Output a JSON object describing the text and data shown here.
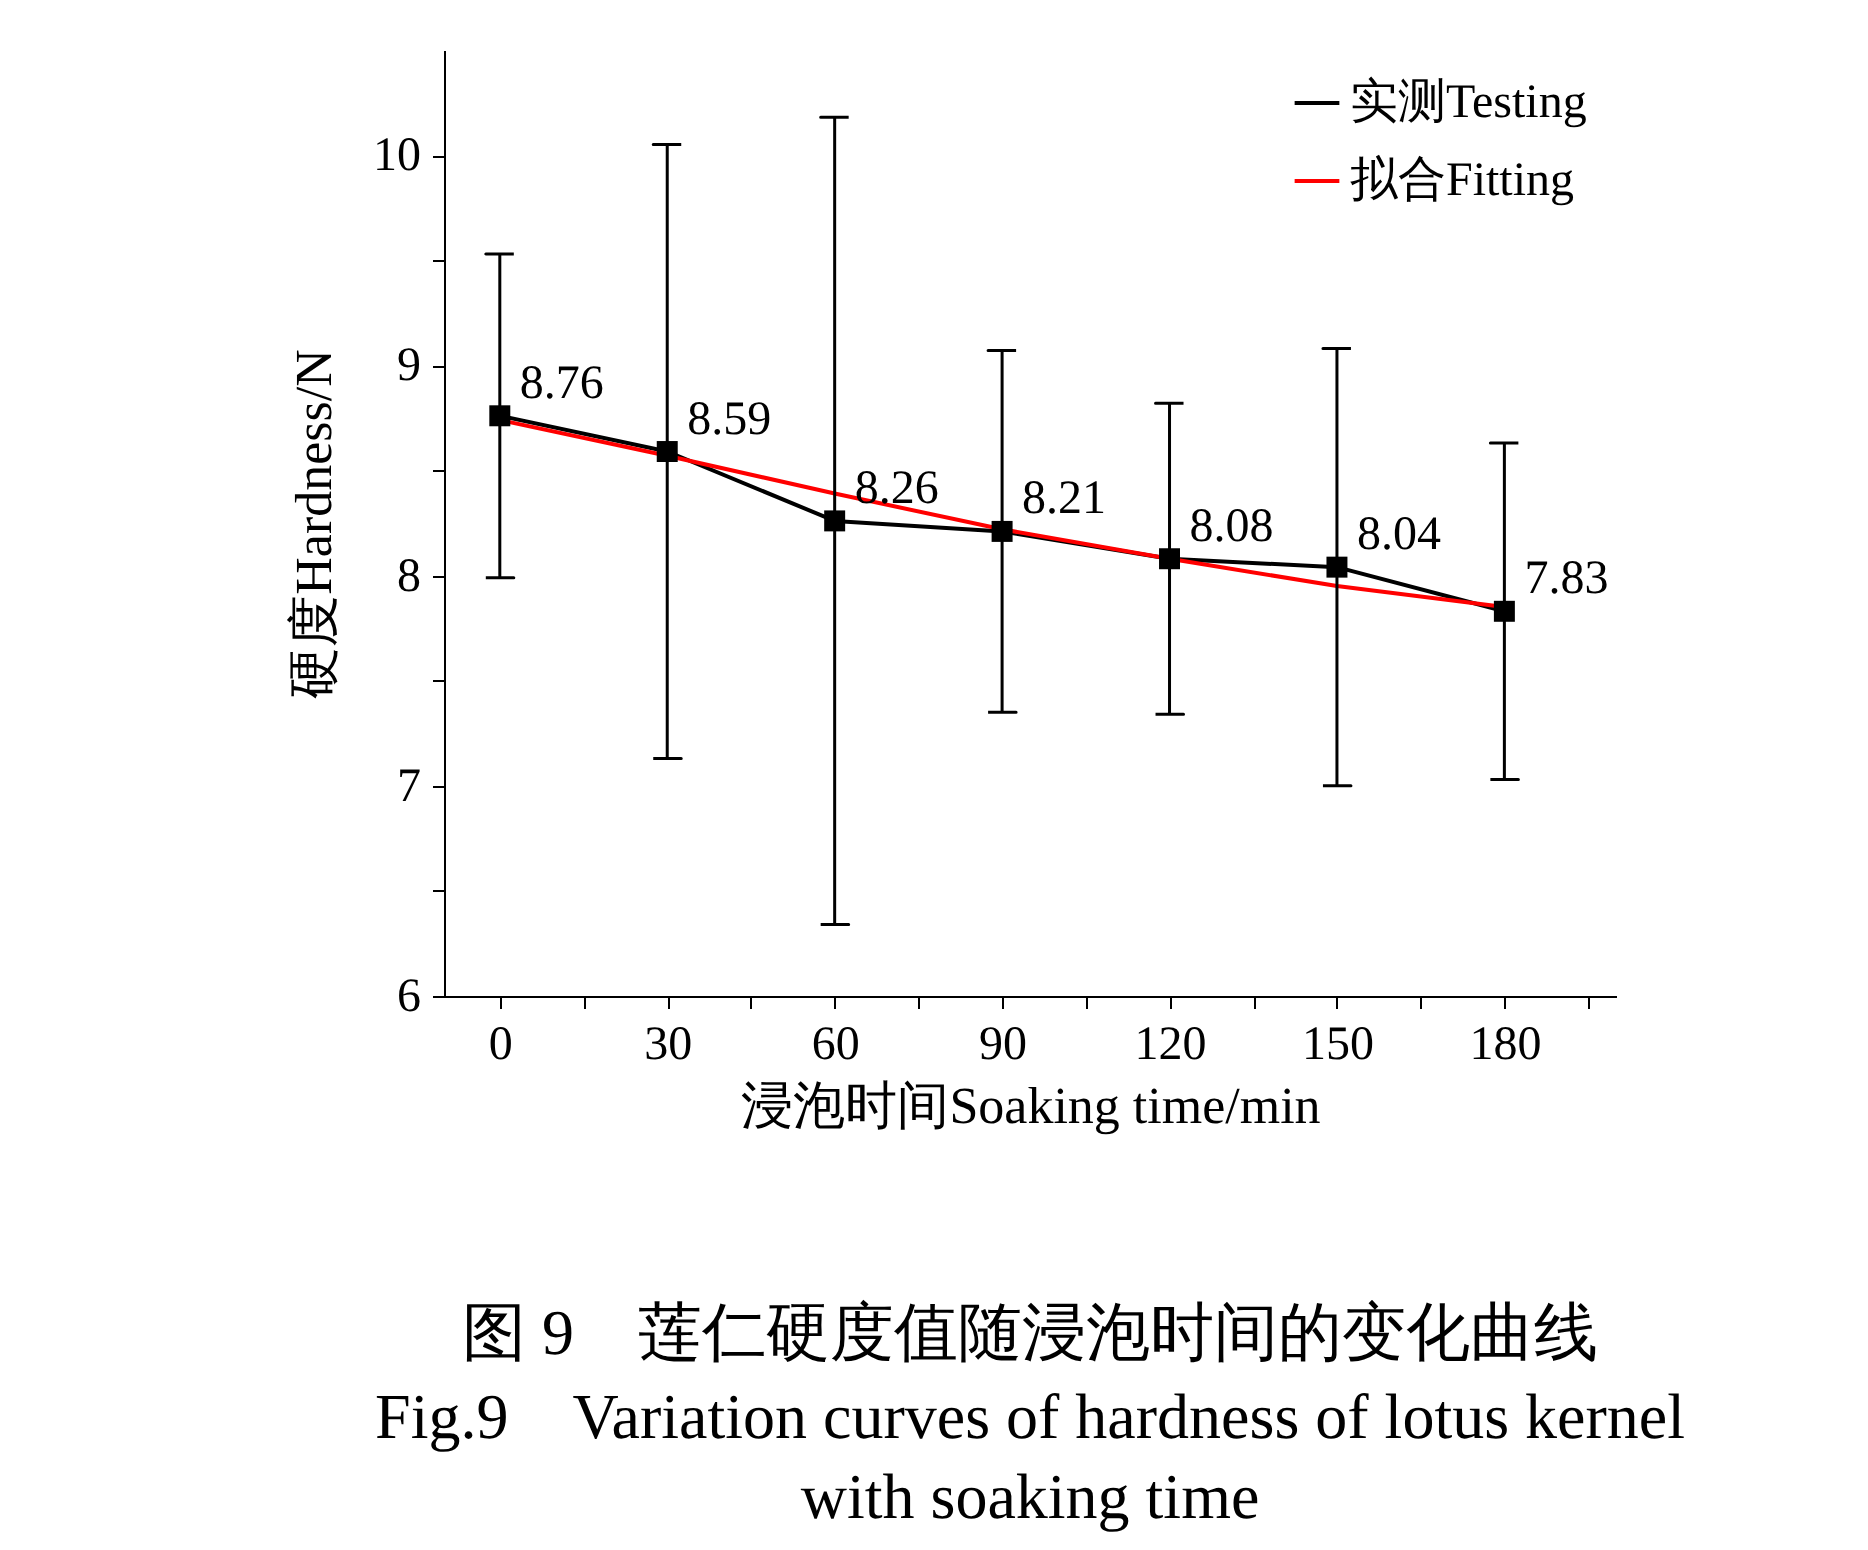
{
  "chart_data": {
    "type": "line",
    "title": "图 9　莲仁硬度值随浸泡时间的变化曲线",
    "subtitle": "Fig.9　Variation curves of hardness of lotus kernel with soaking time",
    "xlabel": "浸泡时间Soaking time/min",
    "ylabel": "硬度Hardness/N",
    "x": [
      0,
      30,
      60,
      90,
      120,
      150,
      180
    ],
    "series": [
      {
        "name": "实测Testing",
        "color": "#000000",
        "marker": "square",
        "values": [
          8.76,
          8.59,
          8.26,
          8.21,
          8.08,
          8.04,
          7.83
        ],
        "errors": [
          0.77,
          1.46,
          1.92,
          0.86,
          0.74,
          1.04,
          0.8
        ],
        "value_labels": [
          "8.76",
          "8.59",
          "8.26",
          "8.21",
          "8.08",
          "8.04",
          "7.83"
        ]
      },
      {
        "name": "拟合Fitting",
        "color": "#ff0000",
        "marker": "none",
        "values": [
          8.74,
          8.57,
          8.39,
          8.22,
          8.08,
          7.95,
          7.85
        ]
      }
    ],
    "xlim": [
      -10,
      200
    ],
    "xticks": [
      0,
      {
        "value": 15,
        "label": null
      },
      30,
      {
        "value": 45,
        "label": null
      },
      60,
      {
        "value": 75,
        "label": null
      },
      90,
      {
        "value": 105,
        "label": null
      },
      120,
      {
        "value": 135,
        "label": null
      },
      150,
      {
        "value": 165,
        "label": null
      },
      180,
      {
        "value": 195,
        "label": null
      }
    ],
    "ylim": [
      6,
      10.5
    ],
    "yticks": [
      6,
      {
        "value": 6.5,
        "label": null
      },
      7,
      {
        "value": 7.5,
        "label": null
      },
      8,
      {
        "value": 8.5,
        "label": null
      },
      9,
      {
        "value": 9.5,
        "label": null
      },
      10
    ],
    "grid": false,
    "legend": "top right"
  }
}
